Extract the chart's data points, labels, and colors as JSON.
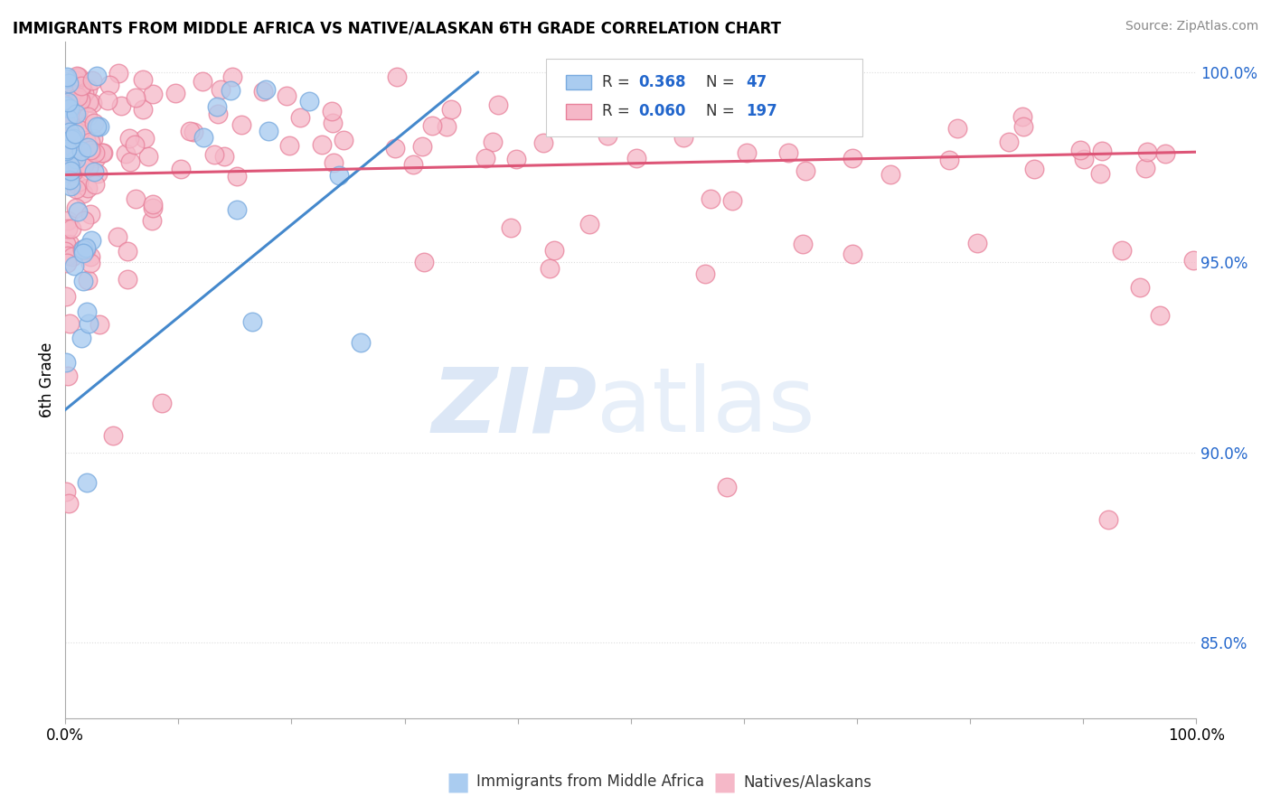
{
  "title": "IMMIGRANTS FROM MIDDLE AFRICA VS NATIVE/ALASKAN 6TH GRADE CORRELATION CHART",
  "source": "Source: ZipAtlas.com",
  "ylabel": "6th Grade",
  "right_yticks": [
    0.85,
    0.9,
    0.95,
    1.0
  ],
  "right_ytick_labels": [
    "85.0%",
    "90.0%",
    "95.0%",
    "100.0%"
  ],
  "blue_R": 0.368,
  "blue_N": 47,
  "pink_R": 0.06,
  "pink_N": 197,
  "blue_color": "#aaccf0",
  "pink_color": "#f5b8c8",
  "blue_edge_color": "#7aabdf",
  "pink_edge_color": "#e8809a",
  "blue_line_color": "#4488cc",
  "pink_line_color": "#dd5577",
  "xlim": [
    0.0,
    1.0
  ],
  "ylim": [
    0.83,
    1.008
  ],
  "watermark_zip_color": "#c5d8f0",
  "watermark_atlas_color": "#c5d8f0",
  "legend_text_color": "#2266cc",
  "grid_color": "#dddddd",
  "xtick_count": 10
}
